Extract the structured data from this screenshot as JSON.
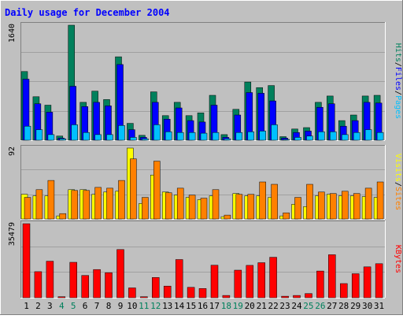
{
  "title": "Daily usage for December 2004",
  "colors": {
    "background": "#c0c0c0",
    "plot_bg": "#c0c0c0",
    "border_light": "#ffffff",
    "border_dark": "#808080",
    "title": "#0000ff",
    "hits": "#00805c",
    "files": "#0000ff",
    "pages": "#00c0ff",
    "visits": "#ffff00",
    "sites": "#ff8000",
    "kbytes": "#ff0000",
    "axis_text": "#000000",
    "weekend_text": "#00805c"
  },
  "chart_data": [
    {
      "type": "bar",
      "panel": "hits-files-pages",
      "ymax_label": "1640",
      "ylim": [
        0,
        1640
      ],
      "legend": [
        {
          "label": "Pages",
          "color": "#00c0ff"
        },
        {
          "label": "Files",
          "color": "#0000ff"
        },
        {
          "label": "Hits",
          "color": "#00805c"
        }
      ],
      "separator": "/",
      "categories": [
        "1",
        "2",
        "3",
        "4",
        "5",
        "6",
        "7",
        "8",
        "9",
        "10",
        "11",
        "12",
        "13",
        "14",
        "15",
        "16",
        "17",
        "18",
        "19",
        "20",
        "21",
        "22",
        "23",
        "24",
        "25",
        "26",
        "27",
        "28",
        "29",
        "30",
        "31"
      ],
      "weekend_days": [
        "4",
        "5",
        "11",
        "12",
        "18",
        "19",
        "25",
        "26"
      ],
      "series": [
        {
          "name": "Hits",
          "values": [
            980,
            620,
            500,
            60,
            1640,
            540,
            700,
            580,
            1190,
            240,
            70,
            690,
            350,
            540,
            350,
            390,
            640,
            80,
            440,
            830,
            750,
            780,
            50,
            160,
            180,
            540,
            630,
            280,
            360,
            630,
            640
          ]
        },
        {
          "name": "Files",
          "values": [
            870,
            520,
            400,
            30,
            770,
            480,
            540,
            490,
            1080,
            150,
            40,
            540,
            300,
            460,
            280,
            260,
            500,
            40,
            360,
            680,
            670,
            560,
            30,
            110,
            130,
            470,
            520,
            200,
            280,
            540,
            530
          ]
        },
        {
          "name": "Pages",
          "values": [
            200,
            150,
            80,
            20,
            220,
            110,
            80,
            80,
            210,
            40,
            20,
            220,
            120,
            110,
            110,
            100,
            110,
            20,
            110,
            120,
            130,
            220,
            10,
            40,
            60,
            120,
            120,
            80,
            110,
            150,
            110
          ]
        }
      ]
    },
    {
      "type": "bar",
      "panel": "visits-sites",
      "ymax_label": "92",
      "ylim": [
        0,
        92
      ],
      "legend": [
        {
          "label": "Sites",
          "color": "#ff8000"
        },
        {
          "label": "Visits",
          "color": "#ffff00"
        }
      ],
      "separator": "/",
      "categories": [
        "1",
        "2",
        "3",
        "4",
        "5",
        "6",
        "7",
        "8",
        "9",
        "10",
        "11",
        "12",
        "13",
        "14",
        "15",
        "16",
        "17",
        "18",
        "19",
        "20",
        "21",
        "22",
        "23",
        "24",
        "25",
        "26",
        "27",
        "28",
        "29",
        "30",
        "31"
      ],
      "series": [
        {
          "name": "Visits",
          "values": [
            32,
            30,
            30,
            4,
            38,
            38,
            32,
            35,
            36,
            92,
            20,
            57,
            35,
            31,
            28,
            25,
            30,
            3,
            33,
            30,
            30,
            28,
            4,
            19,
            16,
            30,
            32,
            30,
            30,
            29,
            28
          ]
        },
        {
          "name": "Sites",
          "values": [
            28,
            38,
            50,
            7,
            37,
            37,
            41,
            40,
            50,
            78,
            28,
            75,
            34,
            40,
            31,
            27,
            38,
            5,
            32,
            32,
            48,
            45,
            8,
            28,
            45,
            35,
            33,
            36,
            33,
            40,
            48
          ]
        }
      ]
    },
    {
      "type": "bar",
      "panel": "kbytes",
      "ymax_label": "35479",
      "ylim": [
        0,
        35479
      ],
      "legend": [
        {
          "label": "KBytes",
          "color": "#ff0000"
        }
      ],
      "categories": [
        "1",
        "2",
        "3",
        "4",
        "5",
        "6",
        "7",
        "8",
        "9",
        "10",
        "11",
        "12",
        "13",
        "14",
        "15",
        "16",
        "17",
        "18",
        "19",
        "20",
        "21",
        "22",
        "23",
        "24",
        "25",
        "26",
        "27",
        "28",
        "29",
        "30",
        "31"
      ],
      "series": [
        {
          "name": "KBytes",
          "values": [
            35479,
            12500,
            17500,
            500,
            17000,
            10700,
            13500,
            12000,
            23100,
            4700,
            500,
            9700,
            5600,
            18300,
            5000,
            4400,
            15600,
            1100,
            13200,
            15500,
            16800,
            19400,
            700,
            1100,
            2000,
            12800,
            20600,
            6800,
            11500,
            14800,
            16300
          ]
        }
      ]
    }
  ]
}
